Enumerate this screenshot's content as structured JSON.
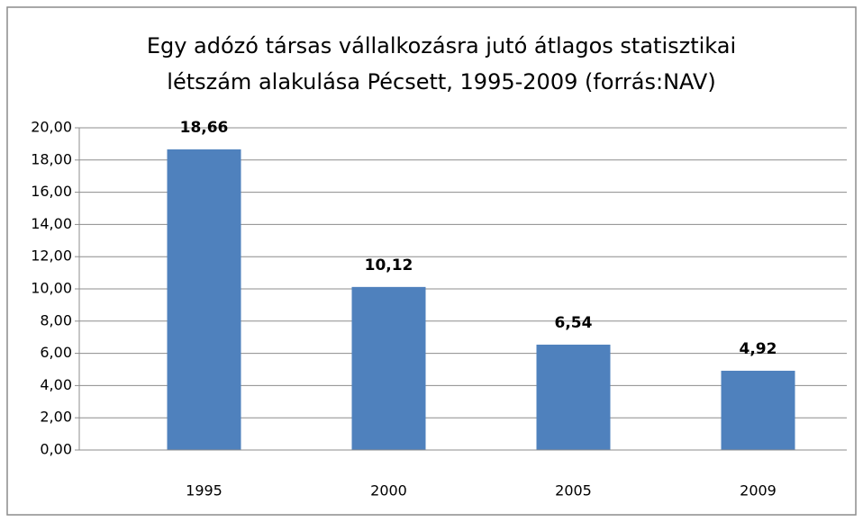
{
  "chart_data": {
    "type": "bar",
    "title": [
      "Egy adózó társas vállalkozásra jutó átlagos statisztikai",
      "létszám alakulása Pécsett, 1995-2009 (forrás:NAV)"
    ],
    "categories": [
      "1995",
      "2000",
      "2005",
      "2009"
    ],
    "values": [
      18.66,
      10.12,
      6.54,
      4.92
    ],
    "value_labels": [
      "18,66",
      "10,12",
      "6,54",
      "4,92"
    ],
    "color": "#4f81bd",
    "ylim": [
      0,
      20
    ],
    "yticks": [
      {
        "value": 0,
        "label": "0,00"
      },
      {
        "value": 2,
        "label": "2,00"
      },
      {
        "value": 4,
        "label": "4,00"
      },
      {
        "value": 6,
        "label": "6,00"
      },
      {
        "value": 8,
        "label": "8,00"
      },
      {
        "value": 10,
        "label": "10,00"
      },
      {
        "value": 12,
        "label": "12,00"
      },
      {
        "value": 14,
        "label": "14,00"
      },
      {
        "value": 16,
        "label": "16,00"
      },
      {
        "value": 18,
        "label": "18,00"
      },
      {
        "value": 20,
        "label": "20,00"
      }
    ],
    "grid": true
  }
}
